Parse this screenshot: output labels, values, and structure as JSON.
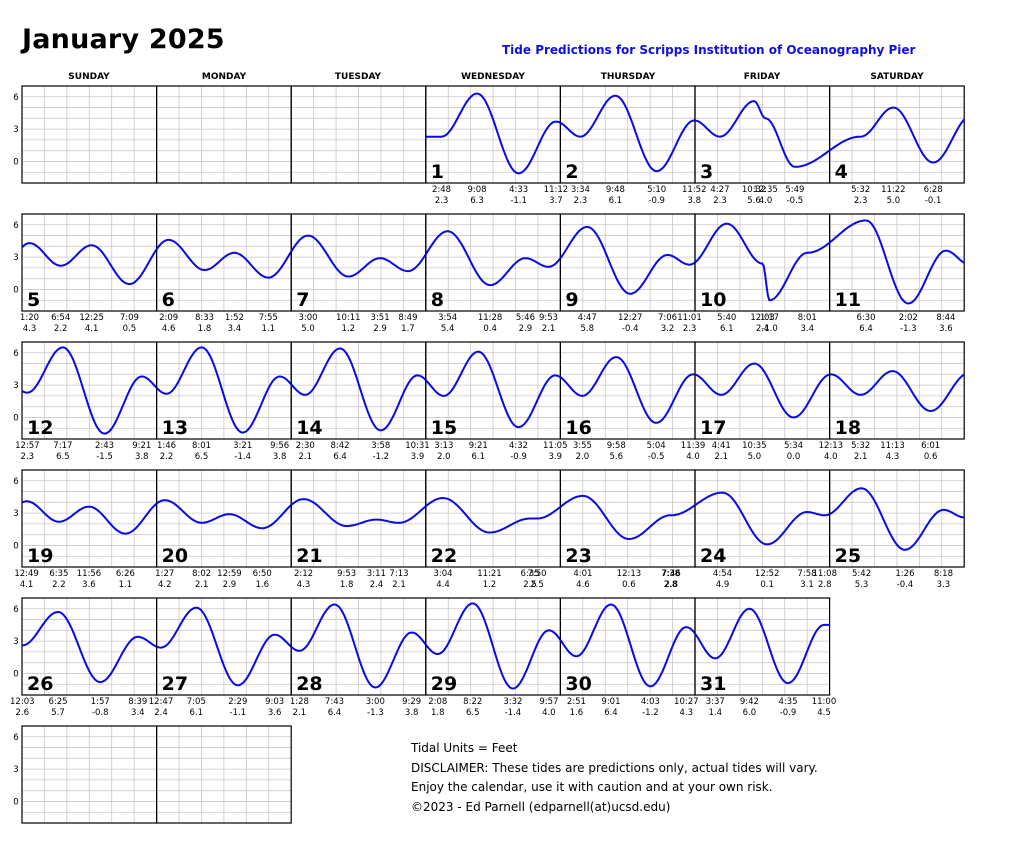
{
  "header": {
    "title": "January 2025",
    "subtitle": "Tide Predictions for Scripps Institution of Oceanography Pier"
  },
  "weekdays": [
    "SUNDAY",
    "MONDAY",
    "TUESDAY",
    "WEDNESDAY",
    "THURSDAY",
    "FRIDAY",
    "SATURDAY"
  ],
  "yticks": [
    "6",
    "3",
    "0"
  ],
  "colors": {
    "tide_line": "#0a0ae6",
    "grid": "#c8c8c8",
    "border": "#000000",
    "subtitle": "#1010e0"
  },
  "notes": {
    "units": "Tidal Units = Feet",
    "disclaimer": "DISCLAIMER: These tides are predictions only, actual tides will vary.",
    "enjoy": "Enjoy the calendar, use it with caution and at your own risk.",
    "copyright": "©2023 - Ed Parnell (edparnell(at)ucsd.edu)"
  },
  "chart_data": {
    "type": "line",
    "ylim": [
      -2,
      7
    ],
    "yticks": [
      0,
      3,
      6
    ],
    "units": "Feet",
    "days": [
      {
        "day": 1,
        "extremes": [
          {
            "t": "2:48",
            "h": "2.3"
          },
          {
            "t": "9:08",
            "h": "6.3"
          },
          {
            "t": "4:33",
            "h": "-1.1"
          },
          {
            "t": "11:12",
            "h": "3.7"
          }
        ]
      },
      {
        "day": 2,
        "extremes": [
          {
            "t": "3:34",
            "h": "2.3"
          },
          {
            "t": "9:48",
            "h": "6.1"
          },
          {
            "t": "5:10",
            "h": "-0.9"
          },
          {
            "t": "11:52",
            "h": "3.8"
          }
        ]
      },
      {
        "day": 3,
        "extremes": [
          {
            "t": "4:27",
            "h": "2.3"
          },
          {
            "t": "10:32",
            "h": "5.6"
          },
          {
            "t": "5:49",
            "h": "-0.5"
          },
          {
            "t": "12:35",
            "h": "4.0"
          }
        ]
      },
      {
        "day": 4,
        "extremes": [
          {
            "t": "5:32",
            "h": "2.3"
          },
          {
            "t": "11:22",
            "h": "5.0"
          },
          {
            "t": "6:28",
            "h": "-0.1"
          }
        ]
      },
      {
        "day": 5,
        "extremes": [
          {
            "t": "1:20",
            "h": "4.3"
          },
          {
            "t": "6:54",
            "h": "2.2"
          },
          {
            "t": "12:25",
            "h": "4.1"
          },
          {
            "t": "7:09",
            "h": "0.5"
          }
        ]
      },
      {
        "day": 6,
        "extremes": [
          {
            "t": "2:09",
            "h": "4.6"
          },
          {
            "t": "8:33",
            "h": "1.8"
          },
          {
            "t": "1:52",
            "h": "3.4"
          },
          {
            "t": "7:55",
            "h": "1.1"
          }
        ]
      },
      {
        "day": 7,
        "extremes": [
          {
            "t": "3:00",
            "h": "5.0"
          },
          {
            "t": "10:11",
            "h": "1.2"
          },
          {
            "t": "3:51",
            "h": "2.9"
          },
          {
            "t": "8:49",
            "h": "1.7"
          }
        ]
      },
      {
        "day": 8,
        "extremes": [
          {
            "t": "3:54",
            "h": "5.4"
          },
          {
            "t": "11:28",
            "h": "0.4"
          },
          {
            "t": "5:46",
            "h": "2.9"
          },
          {
            "t": "9:53",
            "h": "2.1"
          }
        ]
      },
      {
        "day": 9,
        "extremes": [
          {
            "t": "4:47",
            "h": "5.8"
          },
          {
            "t": "12:27",
            "h": "-0.4"
          },
          {
            "t": "7:06",
            "h": "3.2"
          },
          {
            "t": "11:01",
            "h": "2.3"
          }
        ]
      },
      {
        "day": 10,
        "extremes": [
          {
            "t": "5:40",
            "h": "6.1"
          },
          {
            "t": "1:17",
            "h": "-1.0"
          },
          {
            "t": "8:01",
            "h": "3.4"
          },
          {
            "t": "12:03",
            "h": "2.4"
          }
        ]
      },
      {
        "day": 11,
        "extremes": [
          {
            "t": "6:30",
            "h": "6.4"
          },
          {
            "t": "2:02",
            "h": "-1.3"
          },
          {
            "t": "8:44",
            "h": "3.6"
          }
        ]
      },
      {
        "day": 12,
        "extremes": [
          {
            "t": "12:57",
            "h": "2.3"
          },
          {
            "t": "7:17",
            "h": "6.5"
          },
          {
            "t": "2:43",
            "h": "-1.5"
          },
          {
            "t": "9:21",
            "h": "3.8"
          }
        ]
      },
      {
        "day": 13,
        "extremes": [
          {
            "t": "1:46",
            "h": "2.2"
          },
          {
            "t": "8:01",
            "h": "6.5"
          },
          {
            "t": "3:21",
            "h": "-1.4"
          },
          {
            "t": "9:56",
            "h": "3.8"
          }
        ]
      },
      {
        "day": 14,
        "extremes": [
          {
            "t": "2:30",
            "h": "2.1"
          },
          {
            "t": "8:42",
            "h": "6.4"
          },
          {
            "t": "3:58",
            "h": "-1.2"
          },
          {
            "t": "10:31",
            "h": "3.9"
          }
        ]
      },
      {
        "day": 15,
        "extremes": [
          {
            "t": "3:13",
            "h": "2.0"
          },
          {
            "t": "9:21",
            "h": "6.1"
          },
          {
            "t": "4:32",
            "h": "-0.9"
          },
          {
            "t": "11:05",
            "h": "3.9"
          }
        ]
      },
      {
        "day": 16,
        "extremes": [
          {
            "t": "3:55",
            "h": "2.0"
          },
          {
            "t": "9:58",
            "h": "5.6"
          },
          {
            "t": "5:04",
            "h": "-0.5"
          },
          {
            "t": "11:39",
            "h": "4.0"
          }
        ]
      },
      {
        "day": 17,
        "extremes": [
          {
            "t": "4:41",
            "h": "2.1"
          },
          {
            "t": "10:35",
            "h": "5.0"
          },
          {
            "t": "5:34",
            "h": "0.0"
          }
        ]
      },
      {
        "day": 18,
        "extremes": [
          {
            "t": "12:13",
            "h": "4.0"
          },
          {
            "t": "5:32",
            "h": "2.1"
          },
          {
            "t": "11:13",
            "h": "4.3"
          },
          {
            "t": "6:01",
            "h": "0.6"
          }
        ]
      },
      {
        "day": 19,
        "extremes": [
          {
            "t": "12:49",
            "h": "4.1"
          },
          {
            "t": "6:35",
            "h": "2.2"
          },
          {
            "t": "11:56",
            "h": "3.6"
          },
          {
            "t": "6:26",
            "h": "1.1"
          }
        ]
      },
      {
        "day": 20,
        "extremes": [
          {
            "t": "1:27",
            "h": "4.2"
          },
          {
            "t": "8:02",
            "h": "2.1"
          },
          {
            "t": "12:59",
            "h": "2.9"
          },
          {
            "t": "6:50",
            "h": "1.6"
          }
        ]
      },
      {
        "day": 21,
        "extremes": [
          {
            "t": "2:12",
            "h": "4.3"
          },
          {
            "t": "9:53",
            "h": "1.8"
          },
          {
            "t": "3:11",
            "h": "2.4"
          },
          {
            "t": "7:13",
            "h": "2.1"
          }
        ]
      },
      {
        "day": 22,
        "extremes": [
          {
            "t": "3:04",
            "h": "4.4"
          },
          {
            "t": "11:21",
            "h": "1.2"
          },
          {
            "t": "6:35",
            "h": "2.5"
          },
          {
            "t": "7:50",
            "h": "2.5"
          }
        ]
      },
      {
        "day": 23,
        "extremes": [
          {
            "t": "4:01",
            "h": "4.6"
          },
          {
            "t": "12:13",
            "h": "0.6"
          },
          {
            "t": "7:38",
            "h": "2.8"
          },
          {
            "t": "7:46",
            "h": "2.8"
          }
        ]
      },
      {
        "day": 24,
        "extremes": [
          {
            "t": "4:54",
            "h": "4.9"
          },
          {
            "t": "12:52",
            "h": "0.1"
          },
          {
            "t": "7:58",
            "h": "3.1"
          },
          {
            "t": "11:08",
            "h": "2.8"
          }
        ]
      },
      {
        "day": 25,
        "extremes": [
          {
            "t": "5:42",
            "h": "5.3"
          },
          {
            "t": "1:26",
            "h": "-0.4"
          },
          {
            "t": "8:18",
            "h": "3.3"
          }
        ]
      },
      {
        "day": 26,
        "extremes": [
          {
            "t": "12:03",
            "h": "2.6"
          },
          {
            "t": "6:25",
            "h": "5.7"
          },
          {
            "t": "1:57",
            "h": "-0.8"
          },
          {
            "t": "8:39",
            "h": "3.4"
          }
        ]
      },
      {
        "day": 27,
        "extremes": [
          {
            "t": "12:47",
            "h": "2.4"
          },
          {
            "t": "7:05",
            "h": "6.1"
          },
          {
            "t": "2:29",
            "h": "-1.1"
          },
          {
            "t": "9:03",
            "h": "3.6"
          }
        ]
      },
      {
        "day": 28,
        "extremes": [
          {
            "t": "1:28",
            "h": "2.1"
          },
          {
            "t": "7:43",
            "h": "6.4"
          },
          {
            "t": "3:00",
            "h": "-1.3"
          },
          {
            "t": "9:29",
            "h": "3.8"
          }
        ]
      },
      {
        "day": 29,
        "extremes": [
          {
            "t": "2:08",
            "h": "1.8"
          },
          {
            "t": "8:22",
            "h": "6.5"
          },
          {
            "t": "3:32",
            "h": "-1.4"
          },
          {
            "t": "9:57",
            "h": "4.0"
          }
        ]
      },
      {
        "day": 30,
        "extremes": [
          {
            "t": "2:51",
            "h": "1.6"
          },
          {
            "t": "9:01",
            "h": "6.4"
          },
          {
            "t": "4:03",
            "h": "-1.2"
          },
          {
            "t": "10:27",
            "h": "4.3"
          }
        ]
      },
      {
        "day": 31,
        "extremes": [
          {
            "t": "3:37",
            "h": "1.4"
          },
          {
            "t": "9:42",
            "h": "6.0"
          },
          {
            "t": "4:35",
            "h": "-0.9"
          },
          {
            "t": "11:00",
            "h": "4.5"
          }
        ]
      }
    ]
  }
}
